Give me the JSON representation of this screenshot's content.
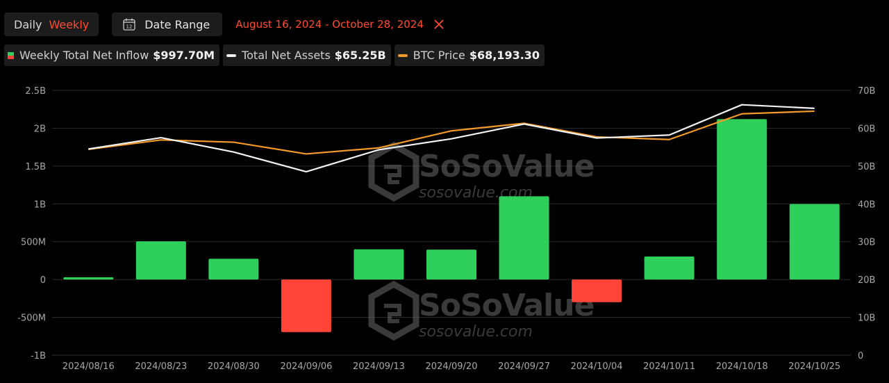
{
  "toolbar": {
    "daily_label": "Daily",
    "weekly_label": "Weekly",
    "date_range_label": "Date Range",
    "calendar_day": "12",
    "range_text": "August 16, 2024 - October 28, 2024"
  },
  "legend": {
    "inflow_label": "Weekly Total Net Inflow",
    "inflow_value": "$997.70M",
    "assets_label": "Total Net Assets",
    "assets_value": "$65.25B",
    "btc_label": "BTC Price",
    "btc_value": "$68,193.30"
  },
  "colors": {
    "positive": "#2ecf5a",
    "negative": "#ff4538",
    "assets_line": "#f2f2f2",
    "btc_line": "#f39a2b",
    "accent": "#ff4b33"
  },
  "watermark": {
    "brand": "SoSoValue",
    "site": "sosovalue.com"
  },
  "chart_data": {
    "type": "bar",
    "categories": [
      "2024/08/16",
      "2024/08/23",
      "2024/08/30",
      "2024/09/06",
      "2024/09/13",
      "2024/09/20",
      "2024/09/27",
      "2024/10/04",
      "2024/10/11",
      "2024/10/18",
      "2024/10/25"
    ],
    "left_axis": {
      "ticks": [
        "2.5B",
        "2B",
        "1.5B",
        "1B",
        "500M",
        "0",
        "-500M",
        "-1B"
      ],
      "ylim": [
        -1000000000,
        2500000000
      ]
    },
    "right_axis": {
      "ticks": [
        "70B",
        "60B",
        "50B",
        "40B",
        "30B",
        "20B",
        "10B",
        "0"
      ],
      "ylim": [
        0,
        70000000000
      ]
    },
    "series": [
      {
        "name": "Weekly Total Net Inflow",
        "type": "bar",
        "axis": "left",
        "values": [
          30000000,
          505000000,
          275000000,
          -695000000,
          400000000,
          395000000,
          1100000000,
          -300000000,
          305000000,
          2120000000,
          997700000
        ]
      },
      {
        "name": "Total Net Assets",
        "type": "line",
        "axis": "right",
        "values": [
          54500000000,
          57500000000,
          53700000000,
          48500000000,
          54300000000,
          57200000000,
          61100000000,
          57400000000,
          58200000000,
          66200000000,
          65250000000
        ]
      },
      {
        "name": "BTC Price",
        "type": "line",
        "axis": "right",
        "values": [
          54400000000,
          56900000000,
          56300000000,
          53200000000,
          54800000000,
          59300000000,
          61300000000,
          57700000000,
          57000000000,
          63800000000,
          64500000000
        ]
      }
    ],
    "grid": true,
    "legend_position": "top-left"
  }
}
